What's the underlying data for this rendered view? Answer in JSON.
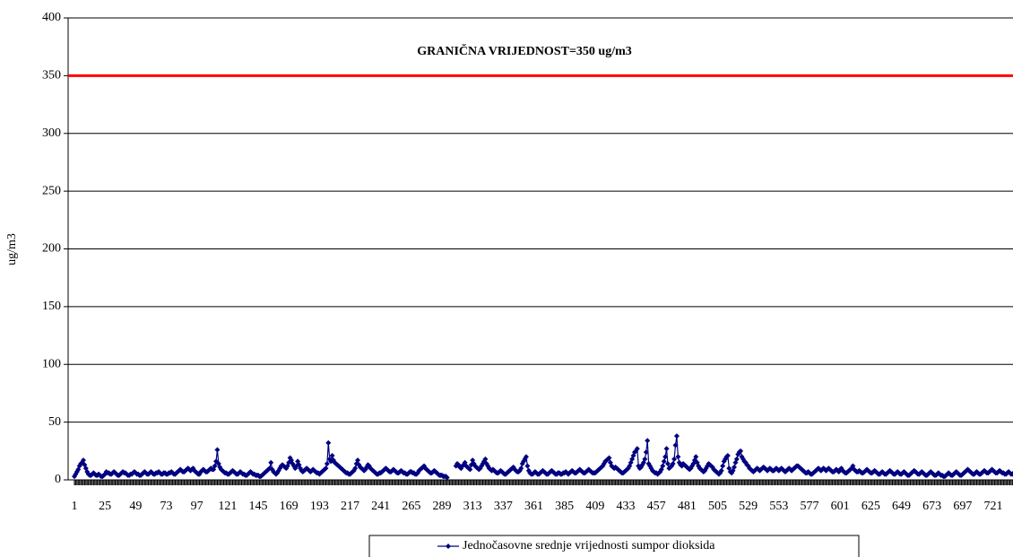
{
  "chart_data": {
    "type": "line",
    "annotation": "GRANIČNA VRIJEDNOST=350 ug/m3",
    "limit": 350,
    "limit_color": "#ff0000",
    "ylabel": "ug/m3",
    "ylim": [
      0,
      400
    ],
    "yticks": [
      0,
      50,
      100,
      150,
      200,
      250,
      300,
      350,
      400
    ],
    "grid": true,
    "legend": "bottom",
    "categories": [
      1,
      null,
      null,
      null,
      null,
      null,
      null,
      null,
      null,
      null,
      null,
      null,
      null,
      null,
      null,
      null,
      null,
      null,
      null,
      null,
      null,
      null,
      null,
      null,
      25,
      null,
      null,
      null,
      null,
      null,
      null,
      null,
      null,
      null,
      null,
      null,
      null,
      null,
      null,
      null,
      null,
      null,
      null,
      null,
      null,
      null,
      null,
      null,
      49,
      null,
      null,
      null,
      null,
      null,
      null,
      null,
      null,
      null,
      null,
      null,
      null,
      null,
      null,
      null,
      null,
      null,
      null,
      null,
      null,
      null,
      null,
      null,
      73,
      null,
      null,
      null,
      null,
      null,
      null,
      null,
      null,
      null,
      null,
      null,
      null,
      null,
      null,
      null,
      null,
      null,
      null,
      null,
      null,
      null,
      null,
      null,
      97,
      null,
      null,
      null,
      null,
      null,
      null,
      null,
      null,
      null,
      null,
      null,
      null,
      null,
      null,
      null,
      null,
      null,
      null,
      null,
      null,
      null,
      null,
      null,
      121,
      null,
      null,
      null,
      null,
      null,
      null,
      null,
      null,
      null,
      null,
      null,
      null,
      null,
      null,
      null,
      null,
      null,
      null,
      null,
      null,
      null,
      null,
      null,
      145,
      null,
      null,
      null,
      null,
      null,
      null,
      null,
      null,
      null,
      null,
      null,
      null,
      null,
      null,
      null,
      null,
      null,
      null,
      null,
      null,
      null,
      null,
      null,
      169,
      null,
      null,
      null,
      null,
      null,
      null,
      null,
      null,
      null,
      null,
      null,
      null,
      null,
      null,
      null,
      null,
      null,
      null,
      null,
      null,
      null,
      null,
      null,
      193,
      null,
      null,
      null,
      null,
      null,
      null,
      null,
      null,
      null,
      null,
      null,
      null,
      null,
      null,
      null,
      null,
      null,
      null,
      null,
      null,
      null,
      null,
      null,
      217,
      null,
      null,
      null,
      null,
      null,
      null,
      null,
      null,
      null,
      null,
      null,
      null,
      null,
      null,
      null,
      null,
      null,
      null,
      null,
      null,
      null,
      null,
      null,
      241,
      null,
      null,
      null,
      null,
      null,
      null,
      null,
      null,
      null,
      null,
      null,
      null,
      null,
      null,
      null,
      null,
      null,
      null,
      null,
      null,
      null,
      null,
      null,
      265,
      null,
      null,
      null,
      null,
      null,
      null,
      null,
      null,
      null,
      null,
      null,
      null,
      null,
      null,
      null,
      null,
      null,
      null,
      null,
      null,
      null,
      null,
      null,
      289,
      null,
      null,
      null,
      null,
      null,
      null,
      null,
      null,
      null,
      null,
      null,
      null,
      null,
      null,
      null,
      null,
      null,
      null,
      null,
      null,
      null,
      null,
      null,
      313,
      null,
      null,
      null,
      null,
      null,
      null,
      null,
      null,
      null,
      null,
      null,
      null,
      null,
      null,
      null,
      null,
      null,
      null,
      null,
      null,
      null,
      null,
      null,
      337,
      null,
      null,
      null,
      null,
      null,
      null,
      null,
      null,
      null,
      null,
      null,
      null,
      null,
      null,
      null,
      null,
      null,
      null,
      null,
      null,
      null,
      null,
      null,
      361,
      null,
      null,
      null,
      null,
      null,
      null,
      null,
      null,
      null,
      null,
      null,
      null,
      null,
      null,
      null,
      null,
      null,
      null,
      null,
      null,
      null,
      null,
      null,
      385,
      null,
      null,
      null,
      null,
      null,
      null,
      null,
      null,
      null,
      null,
      null,
      null,
      null,
      null,
      null,
      null,
      null,
      null,
      null,
      null,
      null,
      null,
      null,
      409,
      null,
      null,
      null,
      null,
      null,
      null,
      null,
      null,
      null,
      null,
      null,
      null,
      null,
      null,
      null,
      null,
      null,
      null,
      null,
      null,
      null,
      null,
      null,
      433,
      null,
      null,
      null,
      null,
      null,
      null,
      null,
      null,
      null,
      null,
      null,
      null,
      null,
      null,
      null,
      null,
      null,
      null,
      null,
      null,
      null,
      null,
      null,
      457,
      null,
      null,
      null,
      null,
      null,
      null,
      null,
      null,
      null,
      null,
      null,
      null,
      null,
      null,
      null,
      null,
      null,
      null,
      null,
      null,
      null,
      null,
      null,
      481,
      null,
      null,
      null,
      null,
      null,
      null,
      null,
      null,
      null,
      null,
      null,
      null,
      null,
      null,
      null,
      null,
      null,
      null,
      null,
      null,
      null,
      null,
      null,
      505,
      null,
      null,
      null,
      null,
      null,
      null,
      null,
      null,
      null,
      null,
      null,
      null,
      null,
      null,
      null,
      null,
      null,
      null,
      null,
      null,
      null,
      null,
      null,
      529,
      null,
      null,
      null,
      null,
      null,
      null,
      null,
      null,
      null,
      null,
      null,
      null,
      null,
      null,
      null,
      null,
      null,
      null,
      null,
      null,
      null,
      null,
      null,
      553,
      null,
      null,
      null,
      null,
      null,
      null,
      null,
      null,
      null,
      null,
      null,
      null,
      null,
      null,
      null,
      null,
      null,
      null,
      null,
      null,
      null,
      null,
      null,
      577,
      null,
      null,
      null,
      null,
      null,
      null,
      null,
      null,
      null,
      null,
      null,
      null,
      null,
      null,
      null,
      null,
      null,
      null,
      null,
      null,
      null,
      null,
      null,
      601,
      null,
      null,
      null,
      null,
      null,
      null,
      null,
      null,
      null,
      null,
      null,
      null,
      null,
      null,
      null,
      null,
      null,
      null,
      null,
      null,
      null,
      null,
      null,
      625,
      null,
      null,
      null,
      null,
      null,
      null,
      null,
      null,
      null,
      null,
      null,
      null,
      null,
      null,
      null,
      null,
      null,
      null,
      null,
      null,
      null,
      null,
      null,
      649,
      null,
      null,
      null,
      null,
      null,
      null,
      null,
      null,
      null,
      null,
      null,
      null,
      null,
      null,
      null,
      null,
      null,
      null,
      null,
      null,
      null,
      null,
      null,
      673,
      null,
      null,
      null,
      null,
      null,
      null,
      null,
      null,
      null,
      null,
      null,
      null,
      null,
      null,
      null,
      null,
      null,
      null,
      null,
      null,
      null,
      null,
      null,
      697,
      null,
      null,
      null,
      null,
      null,
      null,
      null,
      null,
      null,
      null,
      null,
      null,
      null,
      null,
      null,
      null,
      null,
      null,
      null,
      null,
      null,
      null,
      null,
      721,
      null,
      null,
      null,
      null,
      null,
      null,
      null,
      null,
      null,
      null,
      null,
      null,
      null,
      null,
      null,
      null,
      null,
      null,
      null,
      null,
      null,
      null,
      null
    ],
    "series": [
      {
        "name": "Jednočasovne srednje vrijednosti sumpor dioksida",
        "color": "#000080",
        "values": [
          3,
          5,
          7,
          9,
          12,
          14,
          15,
          17,
          13,
          10,
          7,
          5,
          4,
          4,
          5,
          6,
          5,
          4,
          4,
          5,
          4,
          3,
          3,
          4,
          5,
          7,
          6,
          6,
          5,
          5,
          6,
          7,
          6,
          5,
          4,
          4,
          5,
          6,
          7,
          6,
          6,
          5,
          4,
          4,
          5,
          5,
          6,
          7,
          6,
          5,
          5,
          4,
          4,
          5,
          6,
          7,
          6,
          5,
          5,
          6,
          7,
          6,
          5,
          5,
          6,
          6,
          7,
          6,
          5,
          5,
          6,
          6,
          5,
          5,
          6,
          6,
          7,
          6,
          5,
          5,
          6,
          7,
          8,
          9,
          8,
          7,
          7,
          8,
          9,
          10,
          9,
          8,
          9,
          10,
          8,
          7,
          6,
          5,
          5,
          7,
          8,
          9,
          8,
          7,
          7,
          8,
          9,
          10,
          9,
          9,
          12,
          16,
          26,
          14,
          11,
          9,
          8,
          7,
          6,
          6,
          5,
          5,
          6,
          7,
          8,
          7,
          6,
          5,
          5,
          6,
          7,
          6,
          5,
          5,
          4,
          4,
          5,
          6,
          7,
          6,
          5,
          5,
          4,
          4,
          4,
          3,
          3,
          4,
          5,
          6,
          7,
          8,
          9,
          10,
          15,
          9,
          7,
          6,
          5,
          6,
          8,
          10,
          12,
          13,
          12,
          11,
          10,
          12,
          15,
          19,
          17,
          14,
          12,
          10,
          12,
          16,
          13,
          10,
          8,
          7,
          8,
          9,
          10,
          9,
          8,
          7,
          8,
          9,
          8,
          7,
          6,
          6,
          5,
          6,
          7,
          8,
          9,
          10,
          14,
          32,
          18,
          16,
          21,
          17,
          15,
          14,
          13,
          12,
          11,
          10,
          9,
          8,
          7,
          6,
          6,
          5,
          5,
          6,
          7,
          8,
          10,
          14,
          17,
          13,
          11,
          10,
          9,
          8,
          9,
          11,
          13,
          12,
          10,
          9,
          8,
          7,
          6,
          5,
          5,
          6,
          6,
          7,
          8,
          9,
          10,
          9,
          8,
          7,
          7,
          8,
          9,
          8,
          7,
          6,
          6,
          7,
          8,
          7,
          6,
          6,
          5,
          5,
          6,
          7,
          7,
          6,
          6,
          5,
          5,
          6,
          8,
          9,
          10,
          11,
          12,
          10,
          9,
          8,
          7,
          6,
          6,
          7,
          8,
          7,
          6,
          5,
          4,
          4,
          4,
          3,
          3,
          3,
          2,
          null,
          null,
          null,
          null,
          null,
          null,
          12,
          14,
          13,
          11,
          10,
          12,
          13,
          15,
          12,
          11,
          10,
          9,
          13,
          17,
          14,
          12,
          11,
          10,
          9,
          10,
          12,
          14,
          16,
          18,
          14,
          12,
          10,
          9,
          8,
          9,
          8,
          7,
          6,
          6,
          7,
          8,
          7,
          6,
          5,
          5,
          6,
          7,
          8,
          9,
          10,
          11,
          9,
          8,
          7,
          7,
          8,
          10,
          14,
          16,
          18,
          20,
          12,
          8,
          6,
          5,
          5,
          6,
          7,
          6,
          5,
          5,
          6,
          7,
          8,
          7,
          6,
          5,
          5,
          6,
          7,
          8,
          7,
          6,
          5,
          5,
          6,
          6,
          5,
          5,
          6,
          6,
          7,
          6,
          5,
          6,
          7,
          8,
          7,
          6,
          6,
          7,
          8,
          9,
          8,
          7,
          6,
          6,
          7,
          8,
          9,
          8,
          7,
          6,
          6,
          6,
          7,
          8,
          9,
          10,
          11,
          12,
          14,
          16,
          17,
          18,
          19,
          15,
          12,
          11,
          10,
          11,
          10,
          9,
          8,
          7,
          6,
          6,
          7,
          8,
          9,
          10,
          12,
          15,
          18,
          21,
          24,
          25,
          27,
          12,
          10,
          11,
          13,
          15,
          18,
          24,
          34,
          14,
          12,
          10,
          8,
          7,
          6,
          6,
          5,
          6,
          7,
          9,
          12,
          16,
          20,
          27,
          14,
          10,
          11,
          12,
          14,
          18,
          30,
          38,
          20,
          15,
          13,
          12,
          14,
          13,
          12,
          11,
          10,
          9,
          10,
          12,
          14,
          17,
          20,
          15,
          12,
          10,
          9,
          8,
          7,
          8,
          10,
          12,
          14,
          13,
          12,
          11,
          9,
          8,
          7,
          6,
          5,
          6,
          8,
          12,
          16,
          18,
          20,
          21,
          10,
          7,
          6,
          8,
          11,
          15,
          18,
          22,
          24,
          25,
          20,
          18,
          16,
          15,
          13,
          12,
          10,
          9,
          8,
          7,
          8,
          9,
          10,
          9,
          8,
          9,
          10,
          11,
          10,
          9,
          8,
          9,
          10,
          9,
          8,
          8,
          9,
          10,
          9,
          8,
          9,
          10,
          9,
          8,
          7,
          8,
          9,
          10,
          9,
          8,
          9,
          10,
          11,
          12,
          12,
          11,
          10,
          9,
          8,
          7,
          6,
          6,
          7,
          6,
          5,
          5,
          6,
          7,
          8,
          9,
          10,
          9,
          8,
          9,
          10,
          9,
          8,
          9,
          10,
          9,
          8,
          7,
          7,
          8,
          9,
          8,
          7,
          9,
          10,
          8,
          7,
          6,
          6,
          7,
          8,
          9,
          10,
          12,
          9,
          8,
          7,
          7,
          8,
          7,
          6,
          6,
          7,
          8,
          9,
          8,
          7,
          6,
          6,
          7,
          8,
          7,
          6,
          5,
          5,
          6,
          7,
          6,
          5,
          5,
          6,
          7,
          8,
          7,
          6,
          5,
          5,
          6,
          7,
          6,
          5,
          5,
          6,
          7,
          6,
          5,
          4,
          4,
          5,
          6,
          7,
          8,
          7,
          6,
          5,
          5,
          6,
          7,
          6,
          5,
          4,
          4,
          5,
          6,
          7,
          6,
          5,
          4,
          4,
          5,
          6,
          5,
          4,
          4,
          3,
          3,
          4,
          5,
          6,
          5,
          4,
          4,
          5,
          6,
          7,
          6,
          5,
          4,
          4,
          5,
          6,
          7,
          8,
          9,
          8,
          7,
          6,
          5,
          5,
          6,
          7,
          6,
          5,
          5,
          6,
          7,
          8,
          7,
          6,
          6,
          7,
          8,
          9,
          8,
          7,
          6,
          6,
          7,
          8,
          7,
          6,
          6,
          5,
          5,
          6,
          7,
          6,
          5,
          5,
          6,
          7,
          8,
          7,
          6,
          6,
          7,
          6
        ]
      }
    ]
  }
}
